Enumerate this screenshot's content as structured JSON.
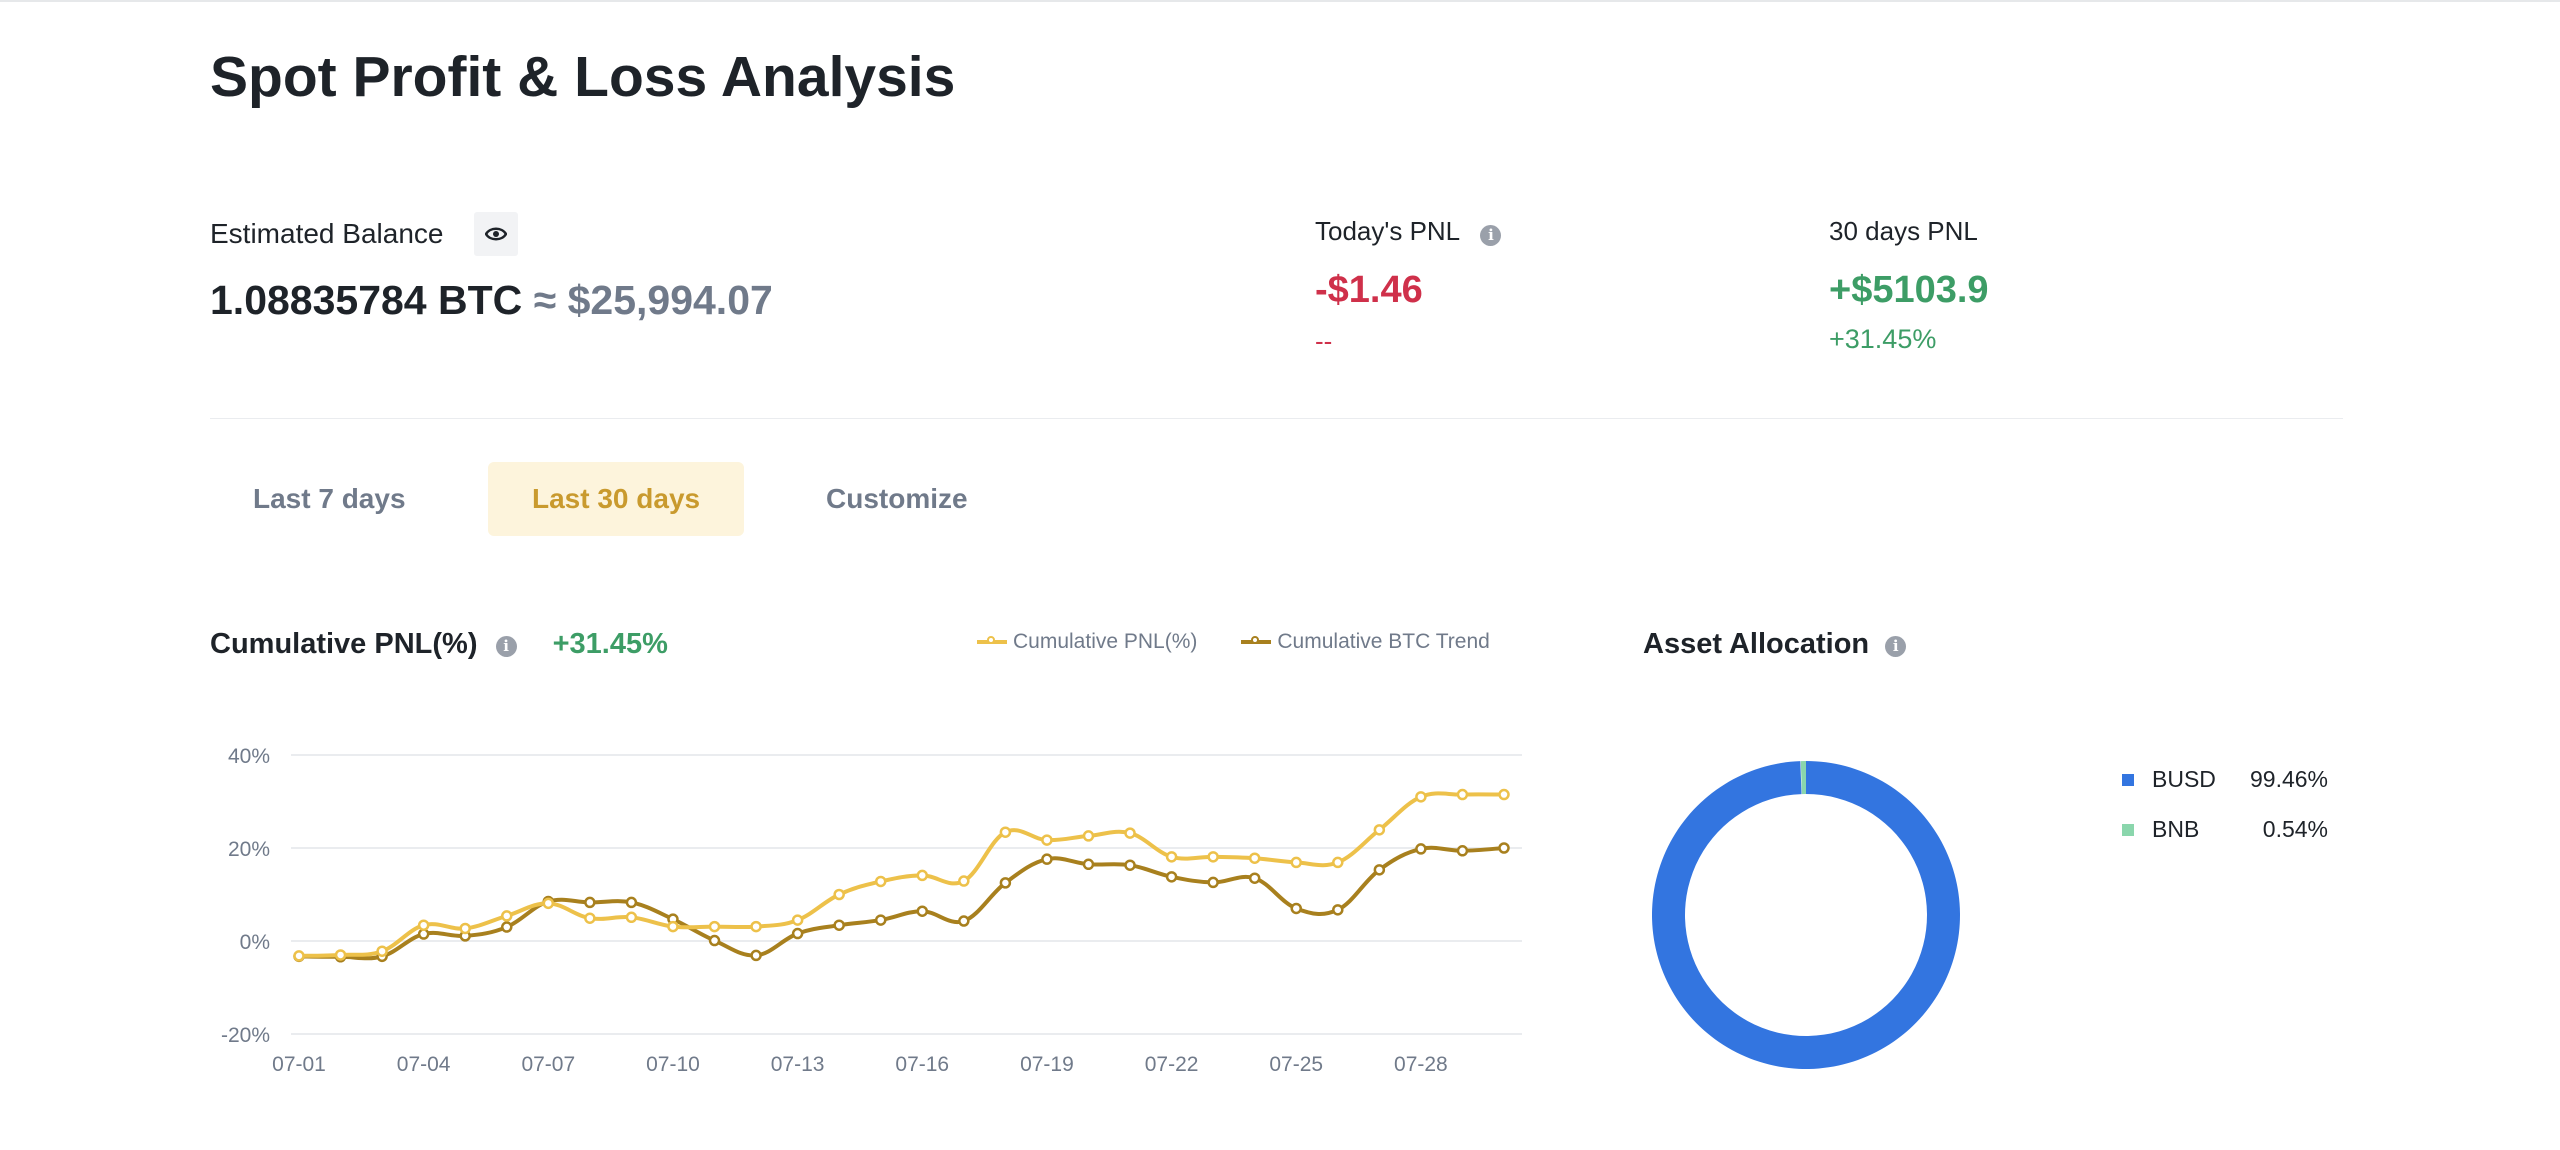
{
  "page": {
    "title": "Spot Profit & Loss Analysis"
  },
  "balance": {
    "label": "Estimated Balance",
    "toggle_icon": "eye-icon",
    "btc": "1.08835784 BTC",
    "approx": "≈",
    "usd": "$25,994.07"
  },
  "today_pnl": {
    "label": "Today's PNL",
    "value": "-$1.46",
    "percent": "--"
  },
  "thirty_pnl": {
    "label": "30 days PNL",
    "value": "+$5103.9",
    "percent": "+31.45%"
  },
  "tabs": [
    {
      "label": "Last 7 days",
      "active": false
    },
    {
      "label": "Last 30 days",
      "active": true
    },
    {
      "label": "Customize",
      "active": false
    }
  ],
  "cumulative": {
    "title": "Cumulative PNL(%)",
    "value": "+31.45%"
  },
  "colors": {
    "pnl": "#EDC14A",
    "btc": "#A8801E",
    "busd": "#3375E0",
    "bnb": "#8AD6AC",
    "green": "#3D9D66",
    "red": "#CF304A"
  },
  "chart_data": {
    "type": "line",
    "title": "Cumulative PNL(%)",
    "xlabel": "",
    "ylabel": "",
    "ylim": [
      -20,
      40
    ],
    "yticks": [
      "40%",
      "20%",
      "0%",
      "-20%"
    ],
    "ytick_values": [
      40,
      20,
      0,
      -20
    ],
    "grid": true,
    "legend_position": "top-right",
    "x": [
      "07-01",
      "07-02",
      "07-03",
      "07-04",
      "07-05",
      "07-06",
      "07-07",
      "07-08",
      "07-09",
      "07-10",
      "07-11",
      "07-12",
      "07-13",
      "07-14",
      "07-15",
      "07-16",
      "07-17",
      "07-18",
      "07-19",
      "07-20",
      "07-21",
      "07-22",
      "07-23",
      "07-24",
      "07-25",
      "07-26",
      "07-27",
      "07-28",
      "07-29",
      "07-30"
    ],
    "xtick_labels": [
      "07-01",
      "07-04",
      "07-07",
      "07-10",
      "07-13",
      "07-16",
      "07-19",
      "07-22",
      "07-25",
      "07-28"
    ],
    "series": [
      {
        "name": "Cumulative PNL(%)",
        "values": [
          -3.2,
          -3.0,
          -2.2,
          3.4,
          2.7,
          5.4,
          8.1,
          4.9,
          5.1,
          3.1,
          3.1,
          3.1,
          4.5,
          10.0,
          12.8,
          14.1,
          12.9,
          23.4,
          21.7,
          22.6,
          23.2,
          18.1,
          18.1,
          17.8,
          16.9,
          16.9,
          23.9,
          31.0,
          31.5,
          31.5
        ]
      },
      {
        "name": "Cumulative BTC Trend",
        "values": [
          -3.3,
          -3.4,
          -3.3,
          1.5,
          1.1,
          3.0,
          8.5,
          8.3,
          8.3,
          4.7,
          0.1,
          -3.1,
          1.6,
          3.4,
          4.5,
          6.4,
          4.3,
          12.5,
          17.6,
          16.5,
          16.3,
          13.8,
          12.6,
          13.5,
          7.0,
          6.7,
          15.3,
          19.8,
          19.4,
          20.0
        ]
      }
    ]
  },
  "allocation": {
    "title": "Asset Allocation",
    "chart_data": {
      "type": "pie",
      "labels": [
        "BUSD",
        "BNB"
      ],
      "values": [
        99.46,
        0.54
      ]
    },
    "items": [
      {
        "name": "BUSD",
        "percent": "99.46%"
      },
      {
        "name": "BNB",
        "percent": "0.54%"
      }
    ]
  }
}
